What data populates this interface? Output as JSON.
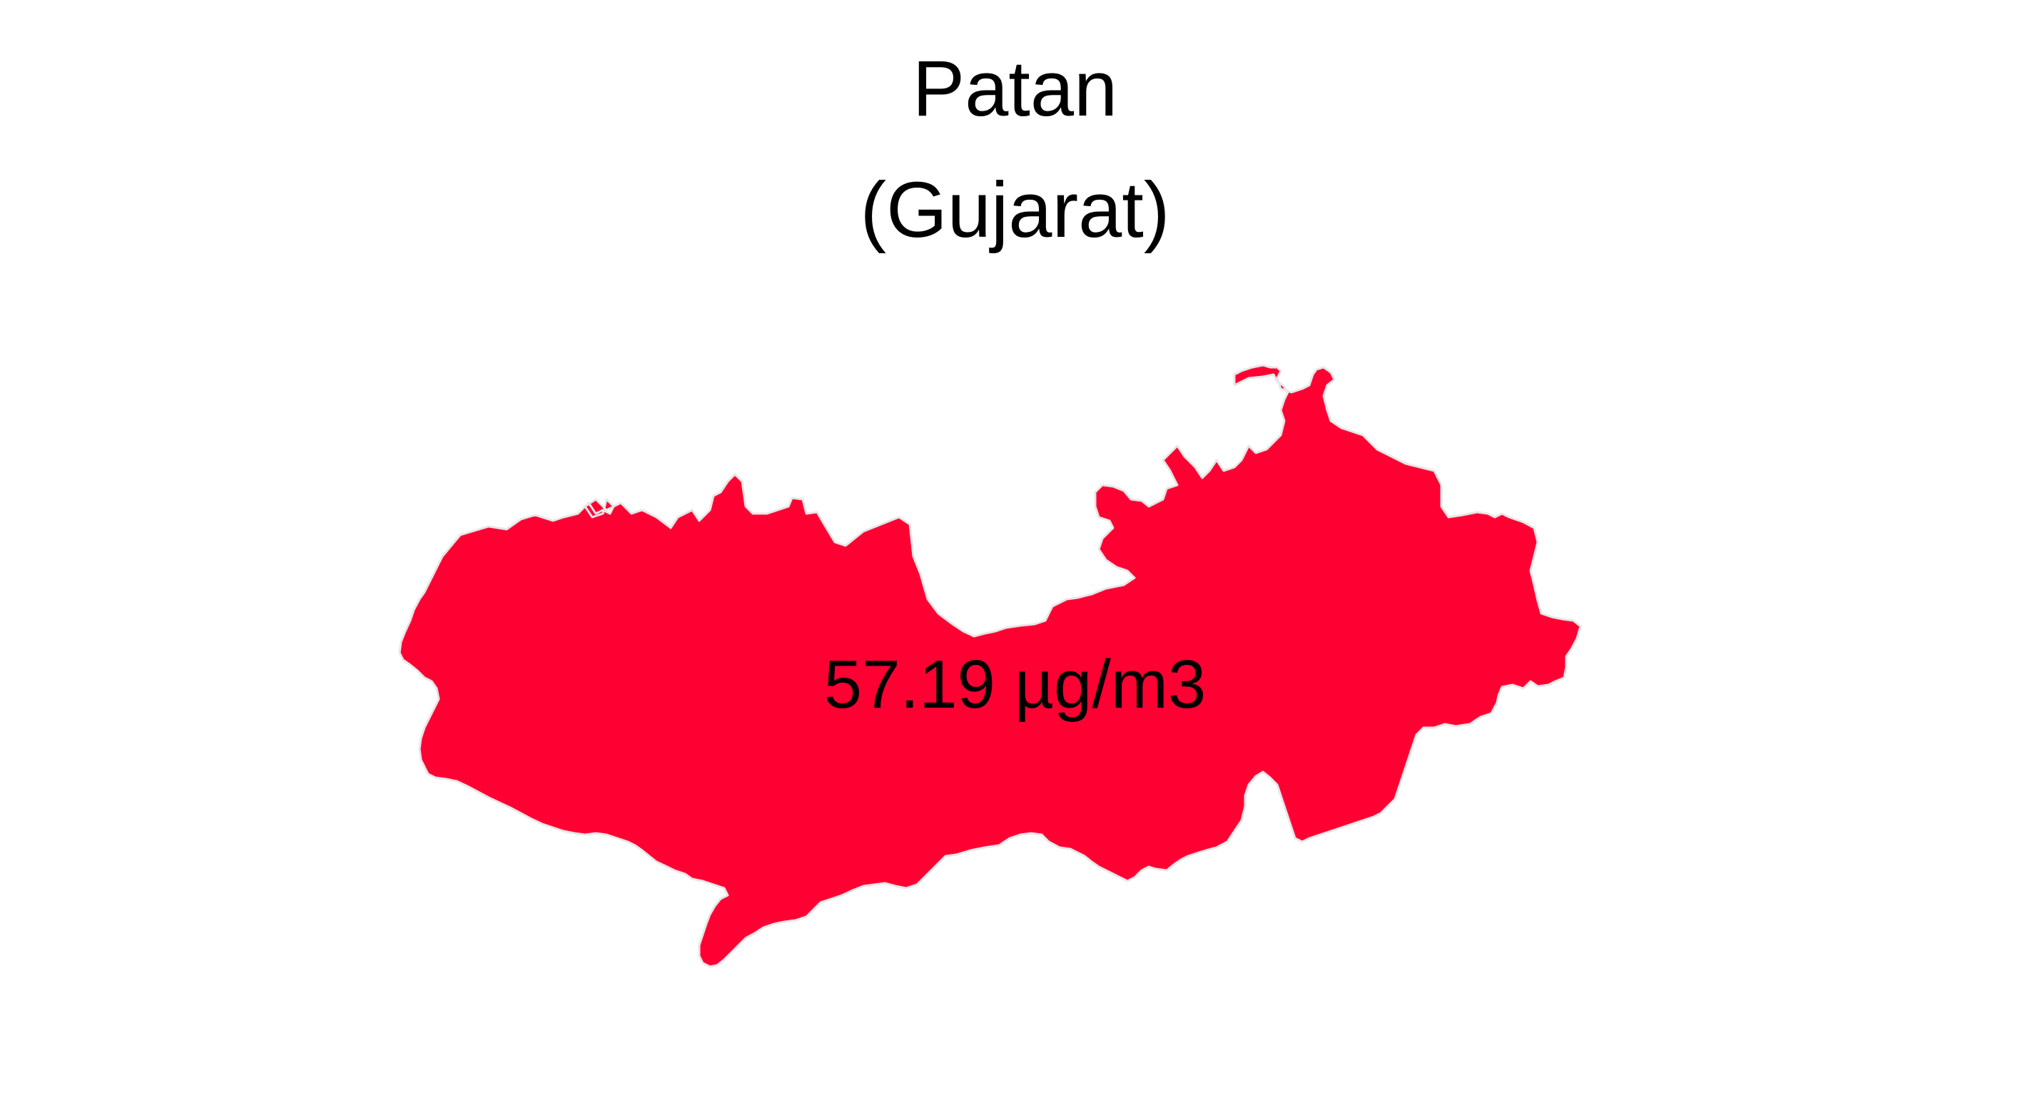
{
  "map": {
    "district": "Patan",
    "state": "(Gujarat)",
    "value_label": "57.19 µg/m3",
    "fill_color": "#ff0033",
    "border_color": "#e6e6e6",
    "background_color": "#ffffff"
  }
}
